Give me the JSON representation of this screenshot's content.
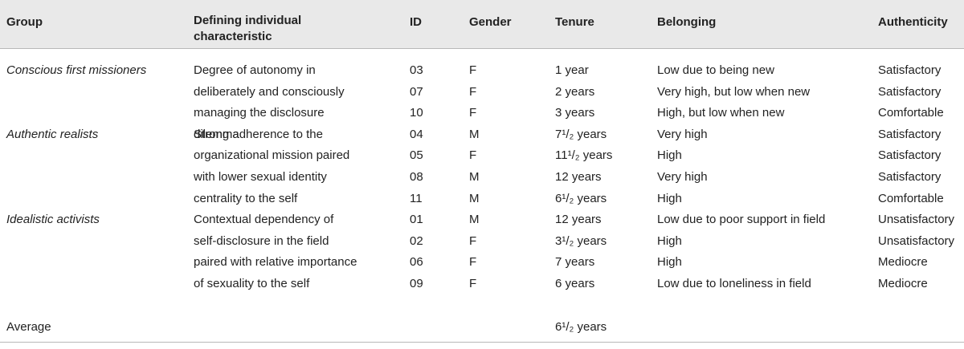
{
  "headers": {
    "group": "Group",
    "characteristic_line1": "Defining individual",
    "characteristic_line2": "characteristic",
    "id": "ID",
    "gender": "Gender",
    "tenure": "Tenure",
    "belonging": "Belonging",
    "authenticity": "Authenticity"
  },
  "groups": [
    {
      "name": "Conscious first missioners",
      "characteristic": [
        "Degree of autonomy in",
        "deliberately and consciously",
        "managing the disclosure",
        "dilemma"
      ]
    },
    {
      "name": "Authentic realists",
      "characteristic": [
        "Strong adherence to the",
        "organizational mission paired",
        "with lower sexual identity",
        "centrality to the self"
      ]
    },
    {
      "name": "Idealistic activists",
      "characteristic": [
        "Contextual dependency of",
        "self-disclosure in the field",
        "paired with relative importance",
        "of sexuality to the self"
      ]
    }
  ],
  "rows": [
    {
      "id": "03",
      "gender": "F",
      "tenure": "1 year",
      "belonging": "Low due to being new",
      "authenticity": "Satisfactory"
    },
    {
      "id": "07",
      "gender": "F",
      "tenure": "2 years",
      "belonging": "Very high, but low when new",
      "authenticity": "Satisfactory"
    },
    {
      "id": "10",
      "gender": "F",
      "tenure": "3 years",
      "belonging": "High, but low when new",
      "authenticity": "Comfortable"
    },
    {
      "id": "04",
      "gender": "M",
      "tenure": "7¹/₂ years",
      "belonging": "Very high",
      "authenticity": "Satisfactory"
    },
    {
      "id": "05",
      "gender": "F",
      "tenure": "11¹/₂ years",
      "belonging": "High",
      "authenticity": "Satisfactory"
    },
    {
      "id": "08",
      "gender": "M",
      "tenure": "12 years",
      "belonging": "Very high",
      "authenticity": "Satisfactory"
    },
    {
      "id": "11",
      "gender": "M",
      "tenure": "6¹/₂ years",
      "belonging": "High",
      "authenticity": "Comfortable"
    },
    {
      "id": "01",
      "gender": "M",
      "tenure": "12 years",
      "belonging": "Low due to poor support in field",
      "authenticity": "Unsatisfactory"
    },
    {
      "id": "02",
      "gender": "F",
      "tenure": "3¹/₂ years",
      "belonging": "High",
      "authenticity": "Unsatisfactory"
    },
    {
      "id": "06",
      "gender": "F",
      "tenure": "7 years",
      "belonging": "High",
      "authenticity": "Mediocre"
    },
    {
      "id": "09",
      "gender": "F",
      "tenure": "6 years",
      "belonging": "Low due to loneliness in field",
      "authenticity": "Mediocre"
    }
  ],
  "average": {
    "label": "Average",
    "tenure": "6¹/₂ years"
  }
}
